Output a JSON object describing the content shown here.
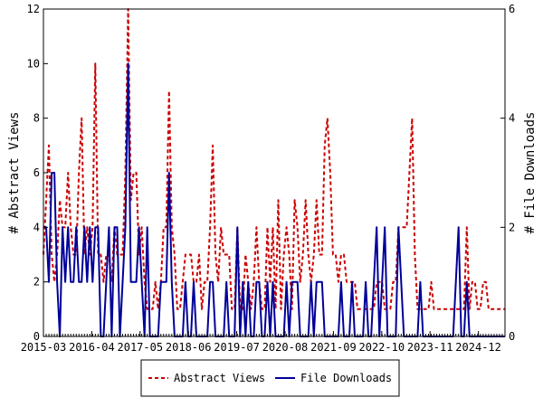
{
  "chart_data": {
    "type": "line",
    "xlabel": "",
    "ylabel": "# Abstract Views",
    "y2label": "# File Downloads",
    "x_tick_labels": [
      "2015-03",
      "2016-04",
      "2017-05",
      "2018-06",
      "2019-07",
      "2020-08",
      "2021-09",
      "2022-10",
      "2023-11",
      "2024-12"
    ],
    "ylim": [
      0,
      12
    ],
    "y_ticks": [
      0,
      2,
      4,
      6,
      8,
      10,
      12
    ],
    "y2lim": [
      0,
      6
    ],
    "y2_ticks": [
      0,
      2,
      4,
      6
    ],
    "grid": false,
    "legend_position": "bottom-center",
    "series": [
      {
        "name": "Abstract Views",
        "axis": "left",
        "color": "#cc0000",
        "style": "dashed",
        "values": [
          3,
          5,
          7,
          3,
          2,
          3,
          5,
          4,
          4,
          6,
          4,
          3,
          3,
          6,
          8,
          3,
          4,
          3,
          4,
          10,
          3,
          3,
          2,
          3,
          3,
          2,
          4,
          3,
          3,
          3,
          6,
          12,
          5,
          6,
          6,
          3,
          4,
          2,
          1,
          1,
          1,
          2,
          1,
          2,
          4,
          4,
          9,
          4,
          3,
          1,
          1,
          2,
          3,
          3,
          3,
          2,
          2,
          3,
          1,
          2,
          2,
          4,
          7,
          3,
          2,
          4,
          3,
          3,
          3,
          1,
          1,
          4,
          1,
          1,
          3,
          2,
          1,
          2,
          4,
          2,
          1,
          1,
          4,
          2,
          4,
          1,
          5,
          1,
          3,
          4,
          3,
          1,
          5,
          4,
          2,
          3,
          5,
          3,
          2,
          3,
          5,
          3,
          3,
          7,
          8,
          6,
          3,
          3,
          2,
          3,
          3,
          2,
          2,
          2,
          2,
          1,
          1,
          1,
          1,
          1,
          1,
          1,
          2,
          2,
          2,
          1,
          1,
          1,
          2,
          2,
          4,
          4,
          4,
          4,
          6,
          8,
          3,
          1,
          1,
          1,
          1,
          1,
          2,
          1,
          1,
          1,
          1,
          1,
          1,
          1,
          1,
          1,
          1,
          1,
          1,
          4,
          1,
          2,
          2,
          1,
          1,
          2,
          2,
          1,
          1,
          1,
          1,
          1,
          1,
          1
        ]
      },
      {
        "name": "File Downloads",
        "axis": "right",
        "color": "#000099",
        "style": "solid",
        "values": [
          2,
          2,
          1,
          3,
          3,
          1,
          0,
          2,
          1,
          2,
          1,
          1,
          2,
          1,
          1,
          2,
          1,
          2,
          1,
          2,
          2,
          0,
          0,
          1,
          2,
          0,
          2,
          2,
          0,
          1,
          2,
          5,
          1,
          1,
          1,
          2,
          1,
          0,
          2,
          0,
          0,
          0,
          0,
          1,
          1,
          1,
          3,
          1,
          0,
          0,
          0,
          0,
          1,
          0,
          0,
          1,
          0,
          0,
          0,
          0,
          0,
          1,
          1,
          0,
          0,
          0,
          0,
          1,
          0,
          0,
          0,
          2,
          0,
          1,
          0,
          1,
          0,
          0,
          1,
          1,
          0,
          0,
          1,
          0,
          1,
          0,
          0,
          0,
          0,
          1,
          0,
          1,
          1,
          1,
          0,
          0,
          0,
          0,
          1,
          0,
          1,
          1,
          1,
          0,
          0,
          0,
          0,
          0,
          0,
          1,
          0,
          0,
          0,
          1,
          0,
          0,
          0,
          0,
          1,
          0,
          0,
          1,
          2,
          0,
          1,
          2,
          0,
          0,
          0,
          0,
          2,
          1,
          0,
          0,
          0,
          0,
          0,
          0,
          1,
          0,
          0,
          0,
          0,
          0,
          0,
          0,
          0,
          0,
          0,
          0,
          0,
          1,
          2,
          0,
          0,
          1,
          0,
          0,
          0,
          0,
          0,
          0,
          0,
          0,
          0,
          0,
          0,
          0,
          0,
          0
        ]
      }
    ]
  }
}
